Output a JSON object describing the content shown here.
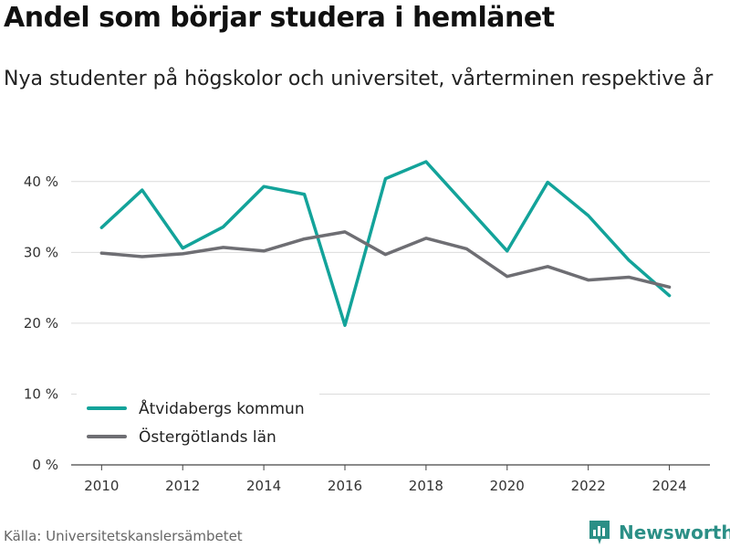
{
  "header": {
    "title": "Andel som börjar studera i hemlänet",
    "subtitle": "Nya studenter på högskolor och universitet, vårterminen respektive år"
  },
  "footer": {
    "source": "Källa: Universitetskanslersämbetet",
    "brand": "Newsworthy"
  },
  "chart_data": {
    "type": "line",
    "title": "Andel som börjar studera i hemlänet",
    "subtitle": "Nya studenter på högskolor och universitet, vårterminen respektive år",
    "xlabel": "",
    "ylabel": "",
    "x": [
      2010,
      2011,
      2012,
      2013,
      2014,
      2015,
      2016,
      2017,
      2018,
      2019,
      2020,
      2021,
      2022,
      2023,
      2024
    ],
    "x_ticks": [
      "2010",
      "2012",
      "2014",
      "2016",
      "2018",
      "2020",
      "2022",
      "2024"
    ],
    "y_ticks": [
      "0 %",
      "10 %",
      "20 %",
      "30 %",
      "40 %"
    ],
    "ylim": [
      0,
      45
    ],
    "grid": true,
    "legend_position": "bottom-left",
    "series": [
      {
        "name": "Åtvidabergs kommun",
        "color": "#13a39a",
        "values": [
          33.5,
          38.8,
          30.6,
          33.6,
          39.3,
          38.2,
          19.7,
          40.4,
          42.8,
          36.5,
          30.2,
          39.9,
          35.2,
          28.9,
          23.9
        ]
      },
      {
        "name": "Östergötlands län",
        "color": "#6e6e73",
        "values": [
          29.9,
          29.4,
          29.8,
          30.7,
          30.2,
          31.9,
          32.9,
          29.7,
          32.0,
          30.5,
          26.6,
          28.0,
          26.1,
          26.5,
          25.1
        ]
      }
    ]
  }
}
